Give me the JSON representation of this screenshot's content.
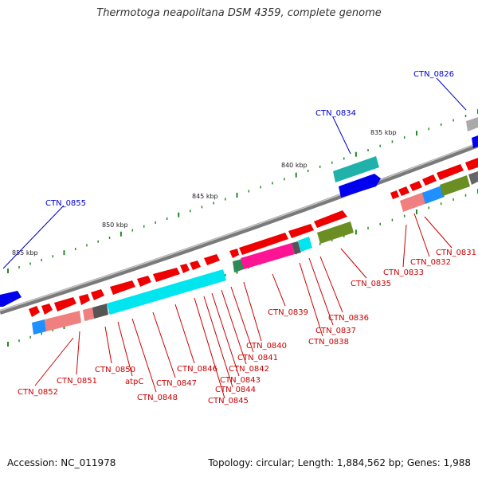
{
  "title": "Thermotoga neapolitana DSM 4359, complete genome",
  "footer": {
    "accession": "Accession: NC_011978",
    "topology": "Topology: circular; Length: 1,884,562 bp; Genes: 1,988"
  },
  "kbp_labels": [
    "835 kbp",
    "840 kbp",
    "845 kbp",
    "850 kbp",
    "855 kbp"
  ],
  "top_gene_labels": [
    "CTN_0826",
    "CTN_0834",
    "CTN_0855"
  ],
  "bottom_gene_labels": [
    "CTN_0831",
    "CTN_0832",
    "CTN_0833",
    "CTN_0835",
    "CTN_0836",
    "CTN_0837",
    "CTN_0838",
    "CTN_0839",
    "CTN_0840",
    "CTN_0841",
    "CTN_0842",
    "CTN_0843",
    "CTN_0844",
    "CTN_0845",
    "CTN_0846",
    "CTN_0847",
    "CTN_0848",
    "atpC",
    "CTN_0850",
    "CTN_0851",
    "CTN_0852"
  ],
  "colors": {
    "backbone": "#888888",
    "forward_strand": "#ff0000",
    "reverse_strand": "#0000ee",
    "cyan": "#00e5ee",
    "pink": "#f08080",
    "magenta": "#ff1493",
    "olive": "#6b8e23",
    "grey": "#666666",
    "skyblue": "#1e90ff",
    "tick": "#228b22",
    "top_label": "#0000cc",
    "bottom_label": "#cc0000"
  }
}
